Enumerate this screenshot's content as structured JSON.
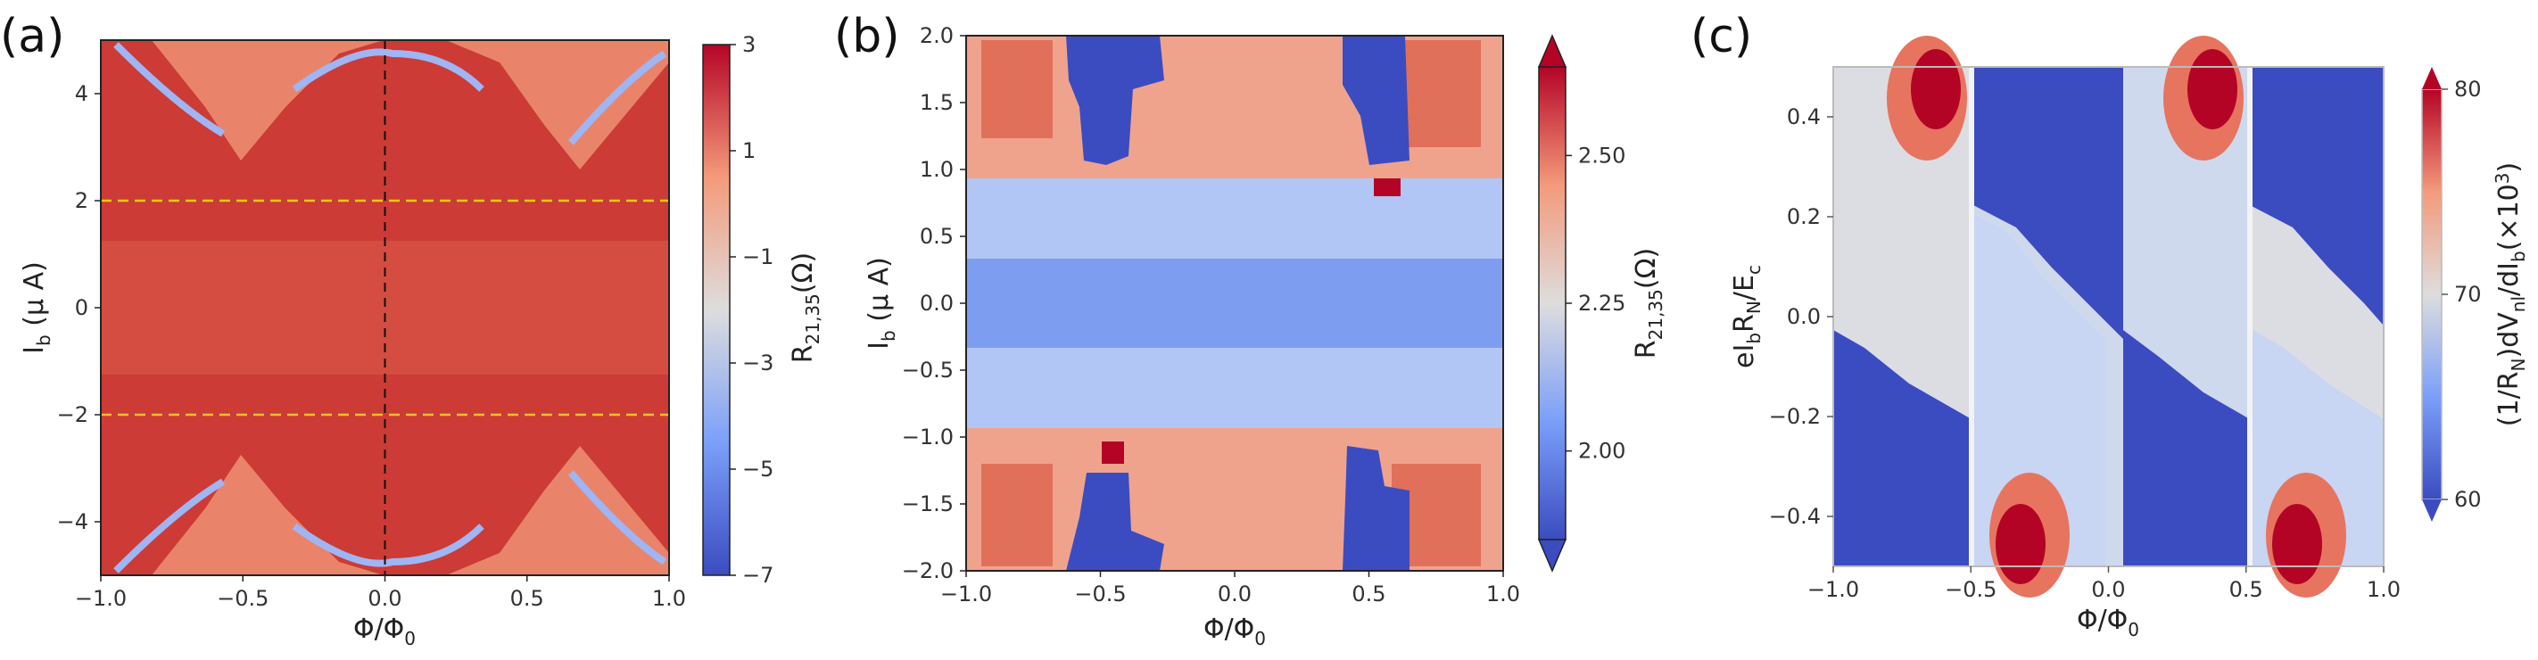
{
  "chart_data": [
    {
      "panel": "(a)",
      "type": "heatmap",
      "xlabel": "Φ/Φ0",
      "ylabel": "Ib (μ A)",
      "colorbar_label": "R21,35(Ω)",
      "xlim": [
        -1.0,
        1.0
      ],
      "ylim": [
        -5.0,
        5.0
      ],
      "x_ticks": [
        -1.0,
        -0.5,
        0.0,
        0.5,
        1.0
      ],
      "x_tick_labels": [
        "−1.0",
        "−0.5",
        "0.0",
        "0.5",
        "1.0"
      ],
      "y_ticks": [
        4,
        2,
        0,
        -2,
        -4
      ],
      "y_tick_labels": [
        "4",
        "2",
        "0",
        "−2",
        "−4"
      ],
      "colorbar_range": [
        -7,
        3
      ],
      "colorbar_ticks": [
        3,
        1,
        -1,
        -3,
        -5,
        -7
      ],
      "colorbar_tick_labels": [
        "3",
        "1",
        "−1",
        "−3",
        "−5",
        "−7"
      ],
      "colormap": "coolwarm",
      "guide_lines": [
        {
          "orientation": "horizontal",
          "value": 2,
          "color": "#f5c518",
          "style": "dashed"
        },
        {
          "orientation": "horizontal",
          "value": -2,
          "color": "#f5c518",
          "style": "dashed"
        },
        {
          "orientation": "vertical",
          "value": 0,
          "color": "#111111",
          "style": "dashed"
        }
      ]
    },
    {
      "panel": "(b)",
      "type": "heatmap",
      "xlabel": "Φ/Φ0",
      "ylabel": "Ib (μ A)",
      "colorbar_label": "R21,35(Ω)",
      "xlim": [
        -1.0,
        1.0
      ],
      "ylim": [
        -2.0,
        2.0
      ],
      "x_ticks": [
        -1.0,
        -0.5,
        0.0,
        0.5,
        1.0
      ],
      "x_tick_labels": [
        "−1.0",
        "−0.5",
        "0.0",
        "0.5",
        "1.0"
      ],
      "y_ticks": [
        2.0,
        1.5,
        1.0,
        0.5,
        0.0,
        -0.5,
        -1.0,
        -1.5,
        -2.0
      ],
      "y_tick_labels": [
        "2.0",
        "1.5",
        "1.0",
        "0.5",
        "0.0",
        "−0.5",
        "−1.0",
        "−1.5",
        "−2.0"
      ],
      "colorbar_range": [
        1.85,
        2.65
      ],
      "colorbar_ticks": [
        2.5,
        2.25,
        2.0
      ],
      "colorbar_tick_labels": [
        "2.50",
        "2.25",
        "2.00"
      ],
      "colormap": "coolwarm",
      "colorbar_extend": "both"
    },
    {
      "panel": "(c)",
      "type": "heatmap",
      "xlabel": "Φ/Φ0",
      "ylabel": "eIbRN/Ec",
      "colorbar_label": "(1/RN)dVnl/dIb(×10³)",
      "xlim": [
        -1.0,
        1.0
      ],
      "ylim": [
        -0.5,
        0.5
      ],
      "x_ticks": [
        -1.0,
        -0.5,
        0.0,
        0.5,
        1.0
      ],
      "x_tick_labels": [
        "−1.0",
        "−0.5",
        "0.0",
        "0.5",
        "1.0"
      ],
      "y_ticks": [
        0.4,
        0.2,
        0.0,
        -0.2,
        -0.4
      ],
      "y_tick_labels": [
        "0.4",
        "0.2",
        "0.0",
        "−0.2",
        "−0.4"
      ],
      "colorbar_range": [
        60,
        80
      ],
      "colorbar_ticks": [
        80,
        70,
        60
      ],
      "colorbar_tick_labels": [
        "80",
        "70",
        "60"
      ],
      "colormap": "coolwarm",
      "colorbar_extend": "both"
    }
  ],
  "colors": {
    "cold": "#3b4cc0",
    "neutral": "#dddddd",
    "hot": "#b40426",
    "guide_yellow": "#f5c518",
    "guide_black": "#111111"
  }
}
